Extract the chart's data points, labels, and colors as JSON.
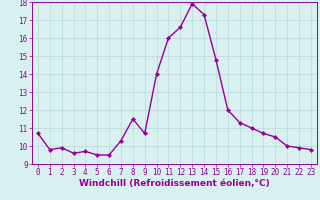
{
  "x": [
    0,
    1,
    2,
    3,
    4,
    5,
    6,
    7,
    8,
    9,
    10,
    11,
    12,
    13,
    14,
    15,
    16,
    17,
    18,
    19,
    20,
    21,
    22,
    23
  ],
  "y": [
    10.7,
    9.8,
    9.9,
    9.6,
    9.7,
    9.5,
    9.5,
    10.3,
    11.5,
    10.7,
    14.0,
    16.0,
    16.6,
    17.9,
    17.3,
    14.8,
    12.0,
    11.3,
    11.0,
    10.7,
    10.5,
    10.0,
    9.9,
    9.8
  ],
  "line_color": "#990099",
  "marker": "D",
  "marker_size": 2.0,
  "line_width": 1.0,
  "background_color": "#d8f0f0",
  "grid_color": "#b8d8d8",
  "xlabel": "Windchill (Refroidissement éolien,°C)",
  "xlim": [
    -0.5,
    23.5
  ],
  "ylim": [
    9,
    18
  ],
  "yticks": [
    9,
    10,
    11,
    12,
    13,
    14,
    15,
    16,
    17,
    18
  ],
  "xticks": [
    0,
    1,
    2,
    3,
    4,
    5,
    6,
    7,
    8,
    9,
    10,
    11,
    12,
    13,
    14,
    15,
    16,
    17,
    18,
    19,
    20,
    21,
    22,
    23
  ],
  "tick_label_size": 5.5,
  "xlabel_size": 6.5
}
